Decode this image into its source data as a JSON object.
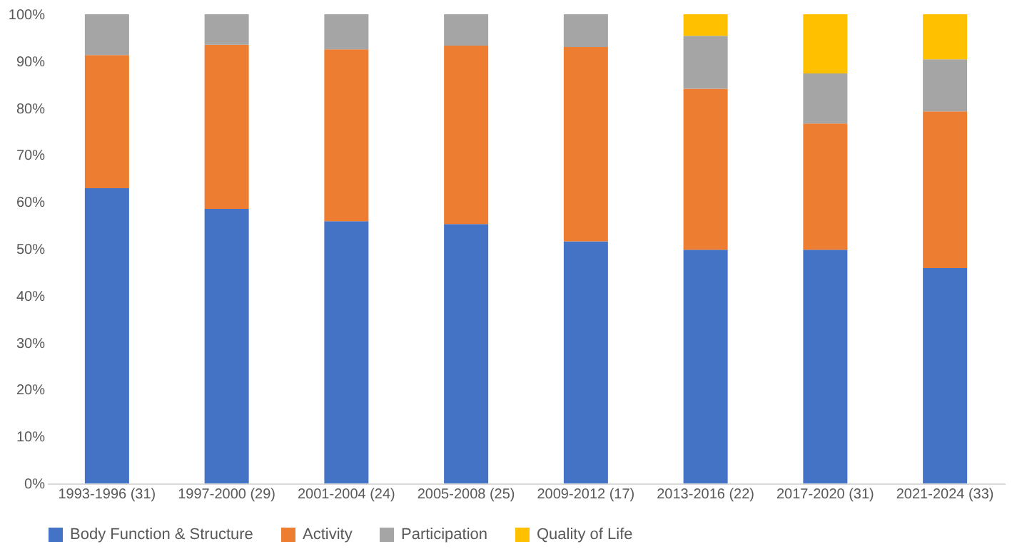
{
  "chart_data": {
    "type": "bar",
    "stacked": true,
    "legend": "bottom",
    "grid": false,
    "categories": [
      "1993-1996 (31)",
      "1997-2000 (29)",
      "2001-2004 (24)",
      "2005-2008 (25)",
      "2009-2012 (17)",
      "2013-2016 (22)",
      "2017-2020 (31)",
      "2021-2024 (33)"
    ],
    "ylim": [
      0,
      100
    ],
    "yticks": [
      {
        "value": 0,
        "label": "0%"
      },
      {
        "value": 10,
        "label": "10%"
      },
      {
        "value": 20,
        "label": "20%"
      },
      {
        "value": 30,
        "label": "30%"
      },
      {
        "value": 40,
        "label": "40%"
      },
      {
        "value": 50,
        "label": "50%"
      },
      {
        "value": 60,
        "label": "60%"
      },
      {
        "value": 70,
        "label": "70%"
      },
      {
        "value": 80,
        "label": "80%"
      },
      {
        "value": 90,
        "label": "90%"
      },
      {
        "value": 100,
        "label": "100%"
      }
    ],
    "series": [
      {
        "name": "Body Function & Structure",
        "color": "#4472c4",
        "values": [
          62.9,
          58.5,
          55.9,
          55.3,
          51.6,
          49.8,
          49.8,
          45.9
        ]
      },
      {
        "name": "Activity",
        "color": "#ed7d31",
        "values": [
          28.4,
          35.0,
          36.6,
          38.0,
          41.4,
          34.3,
          26.9,
          33.4
        ]
      },
      {
        "name": "Participation",
        "color": "#a5a5a5",
        "values": [
          8.7,
          6.5,
          7.5,
          6.7,
          7.0,
          11.3,
          10.7,
          11.1
        ]
      },
      {
        "name": "Quality of Life",
        "color": "#ffc000",
        "values": [
          null,
          null,
          null,
          null,
          null,
          4.6,
          12.6,
          9.6
        ]
      }
    ]
  }
}
